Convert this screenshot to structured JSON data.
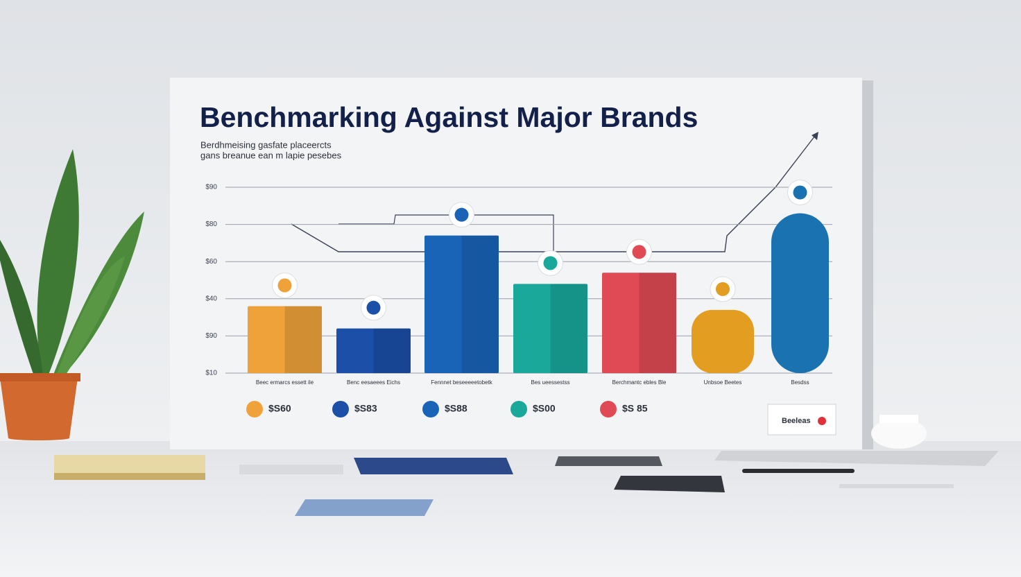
{
  "chart_data": {
    "type": "bar",
    "title": "Benchmarking Against Major Brands",
    "subtitle": [
      "Berdhmeising gasfate placeercts",
      "gans breanue ean m lapie pesebes"
    ],
    "categories": [
      "Beec ermarcs essett ile",
      "Benc eesaeees Eichs",
      "Fennnet beseeeeetobetk",
      "Bes ueessestss",
      "Berchmantc ebles Ble",
      "Unbsoe Beetes",
      "Besdss"
    ],
    "values": [
      1.8,
      1.2,
      3.7,
      2.4,
      2.7,
      1.7,
      4.3
    ],
    "colors": [
      "#f0a23a",
      "#1b4fa8",
      "#1a64b8",
      "#1aa89b",
      "#e04a55",
      "#e39d20",
      "#1a73b0"
    ],
    "ylim": [
      0,
      5
    ],
    "yticks": [
      {
        "value": 0,
        "label": "$10"
      },
      {
        "value": 1,
        "label": "$90"
      },
      {
        "value": 2,
        "label": "$40"
      },
      {
        "value": 3,
        "label": "$60"
      },
      {
        "value": 4,
        "label": "$80"
      },
      {
        "value": 5,
        "label": "$90"
      }
    ],
    "grid": true,
    "price_labels": [
      "$S60",
      "$S83",
      "$S88",
      "$S00",
      "$S 85"
    ],
    "legend_label": "Beeleas"
  }
}
